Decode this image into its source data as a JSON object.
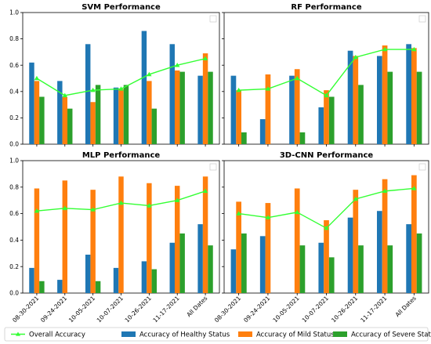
{
  "chart_data": [
    {
      "type": "bar",
      "title": "SVM Performance",
      "categories": [
        "08-30-2021",
        "09-24-2021",
        "10-05-2021",
        "10-07-2021",
        "10-26-2021",
        "11-17-2021",
        "All Dates"
      ],
      "ylim": [
        0,
        1.0
      ],
      "yticks": [
        "0.0",
        "0.2",
        "0.4",
        "0.6",
        "0.8",
        "1.0"
      ],
      "grid": false,
      "series": [
        {
          "name": "Accuracy of Healthy Status",
          "color": "#1f77b4",
          "values": [
            0.62,
            0.48,
            0.76,
            0.43,
            0.86,
            0.76,
            0.52
          ]
        },
        {
          "name": "Accuracy of Mild Status",
          "color": "#ff7f0e",
          "values": [
            0.48,
            0.36,
            0.32,
            0.42,
            0.48,
            0.56,
            0.69
          ]
        },
        {
          "name": "Accuracy of Severe Status",
          "color": "#2ca02c",
          "values": [
            0.36,
            0.27,
            0.45,
            0.45,
            0.27,
            0.55,
            0.55
          ]
        },
        {
          "name": "Overall Accuracy",
          "color": "#33ff33",
          "kind": "line",
          "values": [
            0.5,
            0.37,
            0.41,
            0.42,
            0.53,
            0.6,
            0.65
          ]
        }
      ]
    },
    {
      "type": "bar",
      "title": "RF Performance",
      "categories": [
        "08-30-2021",
        "09-24-2021",
        "10-05-2021",
        "10-07-2021",
        "10-26-2021",
        "11-17-2021",
        "All Dates"
      ],
      "ylim": [
        0,
        1.0
      ],
      "yticks": [
        "0.0",
        "0.2",
        "0.4",
        "0.6",
        "0.8",
        "1.0"
      ],
      "grid": false,
      "series": [
        {
          "name": "Accuracy of Healthy Status",
          "color": "#1f77b4",
          "values": [
            0.52,
            0.19,
            0.52,
            0.28,
            0.71,
            0.67,
            0.76
          ]
        },
        {
          "name": "Accuracy of Mild Status",
          "color": "#ff7f0e",
          "values": [
            0.41,
            0.53,
            0.57,
            0.41,
            0.67,
            0.75,
            0.73
          ]
        },
        {
          "name": "Accuracy of Severe Status",
          "color": "#2ca02c",
          "values": [
            0.09,
            0.0,
            0.09,
            0.36,
            0.45,
            0.55,
            0.55
          ]
        },
        {
          "name": "Overall Accuracy",
          "color": "#33ff33",
          "kind": "line",
          "values": [
            0.41,
            0.42,
            0.5,
            0.37,
            0.66,
            0.72,
            0.72
          ]
        }
      ]
    },
    {
      "type": "bar",
      "title": "MLP Performance",
      "categories": [
        "08-30-2021",
        "09-24-2021",
        "10-05-2021",
        "10-07-2021",
        "10-26-2021",
        "11-17-2021",
        "All Dates"
      ],
      "ylim": [
        0,
        1.0
      ],
      "yticks": [
        "0.0",
        "0.2",
        "0.4",
        "0.6",
        "0.8",
        "1.0"
      ],
      "grid": false,
      "series": [
        {
          "name": "Accuracy of Healthy Status",
          "color": "#1f77b4",
          "values": [
            0.19,
            0.1,
            0.29,
            0.19,
            0.24,
            0.38,
            0.52
          ]
        },
        {
          "name": "Accuracy of Mild Status",
          "color": "#ff7f0e",
          "values": [
            0.79,
            0.85,
            0.78,
            0.88,
            0.83,
            0.81,
            0.88
          ]
        },
        {
          "name": "Accuracy of Severe Status",
          "color": "#2ca02c",
          "values": [
            0.09,
            0.0,
            0.09,
            0.0,
            0.18,
            0.45,
            0.36
          ]
        },
        {
          "name": "Overall Accuracy",
          "color": "#33ff33",
          "kind": "line",
          "values": [
            0.62,
            0.64,
            0.63,
            0.68,
            0.66,
            0.7,
            0.77
          ]
        }
      ]
    },
    {
      "type": "bar",
      "title": "3D-CNN Performance",
      "categories": [
        "08-30-2021",
        "09-24-2021",
        "10-05-2021",
        "10-07-2021",
        "10-26-2021",
        "11-17-2021",
        "All Dates"
      ],
      "ylim": [
        0,
        1.0
      ],
      "yticks": [
        "0.0",
        "0.2",
        "0.4",
        "0.6",
        "0.8",
        "1.0"
      ],
      "grid": false,
      "series": [
        {
          "name": "Accuracy of Healthy Status",
          "color": "#1f77b4",
          "values": [
            0.33,
            0.43,
            0.0,
            0.38,
            0.57,
            0.62,
            0.52
          ]
        },
        {
          "name": "Accuracy of Mild Status",
          "color": "#ff7f0e",
          "values": [
            0.69,
            0.68,
            0.79,
            0.55,
            0.78,
            0.86,
            0.89
          ]
        },
        {
          "name": "Accuracy of Severe Status",
          "color": "#2ca02c",
          "values": [
            0.45,
            0.0,
            0.36,
            0.27,
            0.36,
            0.36,
            0.45
          ]
        },
        {
          "name": "Overall Accuracy",
          "color": "#33ff33",
          "kind": "line",
          "values": [
            0.6,
            0.57,
            0.61,
            0.49,
            0.71,
            0.77,
            0.79
          ]
        }
      ]
    }
  ],
  "legend": {
    "placement": "bottom",
    "entries": [
      {
        "label": "Overall Accuracy",
        "color": "#33ff33",
        "kind": "line"
      },
      {
        "label": "Accuracy of Healthy Status",
        "color": "#1f77b4",
        "kind": "bar"
      },
      {
        "label": "Accuracy of Mild Status",
        "color": "#ff7f0e",
        "kind": "bar"
      },
      {
        "label": "Accuracy of Severe Status",
        "color": "#2ca02c",
        "kind": "bar"
      }
    ]
  }
}
